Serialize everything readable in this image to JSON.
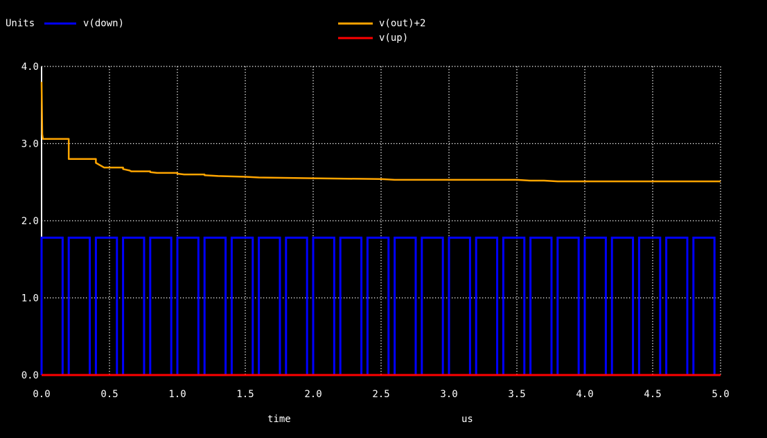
{
  "chart_data": {
    "type": "line",
    "ylabel": "Units",
    "xlabel": "time",
    "xunit": "us",
    "xlim": [
      0.0,
      5.0
    ],
    "ylim": [
      0.0,
      4.0
    ],
    "x_ticks": [
      "0.0",
      "0.5",
      "1.0",
      "1.5",
      "2.0",
      "2.5",
      "3.0",
      "3.5",
      "4.0",
      "4.5",
      "5.0"
    ],
    "y_ticks": [
      "0.0",
      "1.0",
      "2.0",
      "3.0",
      "4.0"
    ],
    "grid": true,
    "legend_position": "top",
    "series": [
      {
        "name": "v(down)",
        "color": "#0000ff",
        "kind": "pulse",
        "high": 1.78,
        "low": 0.0,
        "period": 0.2,
        "rise_at": 0.0,
        "fall_at": 0.155,
        "pulses": 25
      },
      {
        "name": "v(out)+2",
        "color": "#ffa500",
        "x": [
          0.0,
          0.005,
          0.01,
          0.2,
          0.2,
          0.4,
          0.4,
          0.45,
          0.46,
          0.6,
          0.6,
          0.65,
          0.66,
          0.8,
          0.8,
          0.85,
          1.0,
          1.0,
          1.05,
          1.2,
          1.2,
          1.3,
          1.5,
          1.6,
          2.0,
          2.5,
          2.6,
          3.0,
          3.5,
          3.6,
          3.7,
          3.8,
          4.0,
          4.5,
          5.0
        ],
        "y": [
          3.8,
          3.12,
          3.06,
          3.06,
          2.8,
          2.8,
          2.75,
          2.7,
          2.69,
          2.69,
          2.67,
          2.65,
          2.64,
          2.64,
          2.63,
          2.62,
          2.62,
          2.61,
          2.6,
          2.6,
          2.59,
          2.58,
          2.57,
          2.56,
          2.55,
          2.54,
          2.53,
          2.53,
          2.53,
          2.52,
          2.52,
          2.51,
          2.51,
          2.51,
          2.51
        ]
      },
      {
        "name": "v(up)",
        "color": "#ff0000",
        "x": [
          0.0,
          5.0
        ],
        "y": [
          0.0,
          0.0
        ]
      }
    ]
  }
}
